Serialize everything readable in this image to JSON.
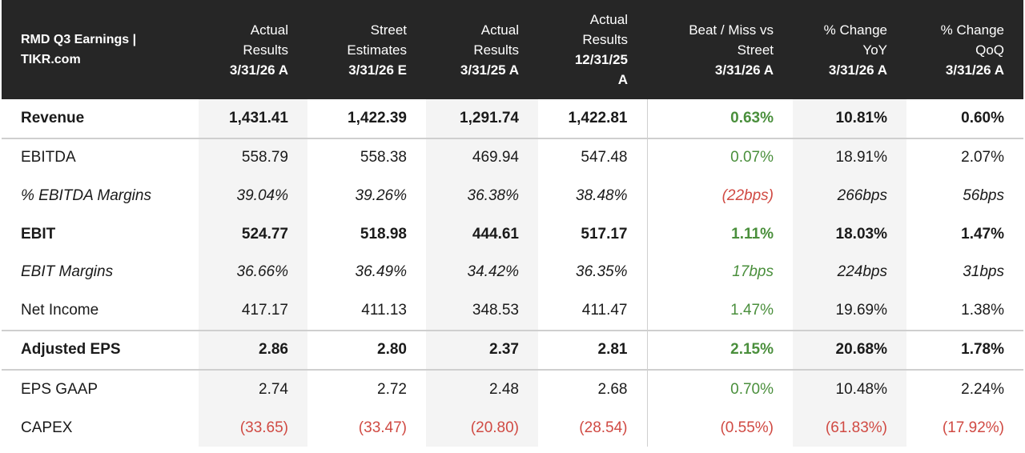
{
  "header": {
    "title_line1": "RMD Q3 Earnings |",
    "title_line2": "TIKR.com",
    "columns": [
      {
        "l1": "Actual",
        "l2": "Results",
        "l3": "3/31/26 A"
      },
      {
        "l1": "Street",
        "l2": "Estimates",
        "l3": "3/31/26 E"
      },
      {
        "l1": "Actual",
        "l2": "Results",
        "l3": "3/31/25 A"
      },
      {
        "l1": "Actual",
        "l2": "Results",
        "l3": "12/31/25",
        "l4": "A"
      },
      {
        "l1": "Beat / Miss vs",
        "l2": "Street",
        "l3": "3/31/26 A"
      },
      {
        "l1": "% Change",
        "l2": "YoY",
        "l3": "3/31/26 A"
      },
      {
        "l1": "% Change",
        "l2": "QoQ",
        "l3": "3/31/26 A"
      }
    ]
  },
  "rows": [
    {
      "label": "Revenue",
      "c1": "1,431.41",
      "c2": "1,422.39",
      "c3": "1,291.74",
      "c4": "1,422.81",
      "c5": "0.63%",
      "c6": "10.81%",
      "c7": "0.60%"
    },
    {
      "label": "EBITDA",
      "c1": "558.79",
      "c2": "558.38",
      "c3": "469.94",
      "c4": "547.48",
      "c5": "0.07%",
      "c6": "18.91%",
      "c7": "2.07%"
    },
    {
      "label": "% EBITDA Margins",
      "c1": "39.04%",
      "c2": "39.26%",
      "c3": "36.38%",
      "c4": "38.48%",
      "c5": "(22bps)",
      "c6": "266bps",
      "c7": "56bps"
    },
    {
      "label": "EBIT",
      "c1": "524.77",
      "c2": "518.98",
      "c3": "444.61",
      "c4": "517.17",
      "c5": "1.11%",
      "c6": "18.03%",
      "c7": "1.47%"
    },
    {
      "label": "EBIT Margins",
      "c1": "36.66%",
      "c2": "36.49%",
      "c3": "34.42%",
      "c4": "36.35%",
      "c5": "17bps",
      "c6": "224bps",
      "c7": "31bps"
    },
    {
      "label": "Net Income",
      "c1": "417.17",
      "c2": "411.13",
      "c3": "348.53",
      "c4": "411.47",
      "c5": "1.47%",
      "c6": "19.69%",
      "c7": "1.38%"
    },
    {
      "label": "Adjusted EPS",
      "c1": "2.86",
      "c2": "2.80",
      "c3": "2.37",
      "c4": "2.81",
      "c5": "2.15%",
      "c6": "20.68%",
      "c7": "1.78%"
    },
    {
      "label": "EPS GAAP",
      "c1": "2.74",
      "c2": "2.72",
      "c3": "2.48",
      "c4": "2.68",
      "c5": "0.70%",
      "c6": "10.48%",
      "c7": "2.24%"
    },
    {
      "label": "CAPEX",
      "c1": "(33.65)",
      "c2": "(33.47)",
      "c3": "(20.80)",
      "c4": "(28.54)",
      "c5": "(0.55%)",
      "c6": "(61.83%)",
      "c7": "(17.92%)"
    }
  ],
  "colors": {
    "positive": "#4a8f3c",
    "negative": "#d04a43",
    "header_bg": "#262626"
  }
}
